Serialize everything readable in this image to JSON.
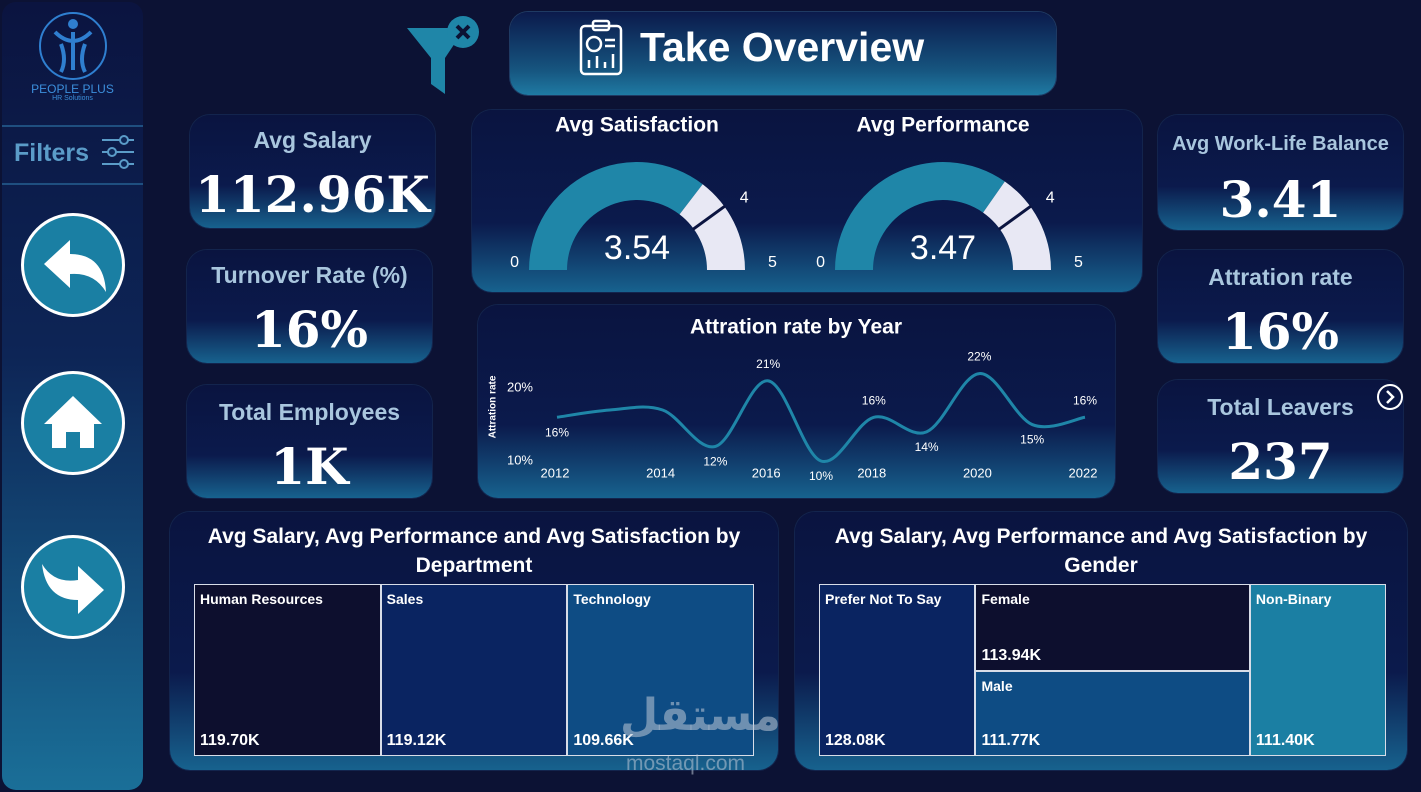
{
  "logo": {
    "name": "PEOPLE PLUS",
    "tagline": "HR Solutions"
  },
  "filters_label": "Filters",
  "title": "Take Overview",
  "kpis": [
    {
      "label": "Avg Salary",
      "value": "112.96K"
    },
    {
      "label": "Turnover Rate (%)",
      "value": "16%"
    },
    {
      "label": "Total Employees",
      "value": "1K"
    },
    {
      "label": "Avg Work-Life Balance",
      "value": "3.41"
    },
    {
      "label": "Attration rate",
      "value": "16%"
    },
    {
      "label": "Total Leavers",
      "value": "237"
    }
  ],
  "chart_data": [
    {
      "type": "gauge",
      "title": "Avg Satisfaction",
      "value": 3.54,
      "min": 0,
      "max": 5,
      "target": 4,
      "color": "#1f86a8",
      "track_color": "#e8e8f4"
    },
    {
      "type": "gauge",
      "title": "Avg Performance",
      "value": 3.47,
      "min": 0,
      "max": 5,
      "target": 4,
      "color": "#1f86a8",
      "track_color": "#e8e8f4"
    },
    {
      "type": "line",
      "title": "Attration rate by Year",
      "y_label": "Attration rate",
      "x": [
        2012,
        2013,
        2014,
        2015,
        2016,
        2017,
        2018,
        2019,
        2020,
        2021,
        2022
      ],
      "values": [
        16,
        17,
        17,
        12,
        21,
        10,
        16,
        14,
        22,
        15,
        16
      ],
      "value_labels": [
        "16%",
        null,
        null,
        "12%",
        "21%",
        "10%",
        "16%",
        "14%",
        "22%",
        "15%",
        "16%"
      ],
      "color": "#1f86a8",
      "xlim": [
        2012,
        2022
      ],
      "xticks": [
        2012,
        2014,
        2016,
        2018,
        2020,
        2022
      ],
      "ylim": [
        10,
        24
      ],
      "yticks": [
        {
          "value": 10,
          "label": "10%"
        },
        {
          "value": 20,
          "label": "20%"
        }
      ]
    },
    {
      "type": "treemap",
      "title": "Avg Salary, Avg Performance and Avg Satisfaction by Department",
      "categories": [
        "Human Resources",
        "Sales",
        "Technology"
      ],
      "values": [
        119700,
        119120,
        109660
      ],
      "value_labels": [
        "119.70K",
        "119.12K",
        "109.66K"
      ],
      "colors": [
        "#0d0f2e",
        "#0a2461",
        "#0e4c84"
      ]
    },
    {
      "type": "treemap",
      "title": "Avg Salary, Avg Performance and Avg Satisfaction by Gender",
      "categories": [
        "Prefer Not To Say",
        "Female",
        "Male",
        "Non-Binary"
      ],
      "values": [
        128080,
        113940,
        111770,
        111400
      ],
      "value_labels": [
        "128.08K",
        "113.94K",
        "111.77K",
        "111.40K"
      ],
      "colors": [
        "#0a2461",
        "#0d0f2e",
        "#0e4c84",
        "#1b7fa3"
      ]
    }
  ],
  "watermark": {
    "arabic": "مستقل",
    "latin": "mostaql.com"
  }
}
